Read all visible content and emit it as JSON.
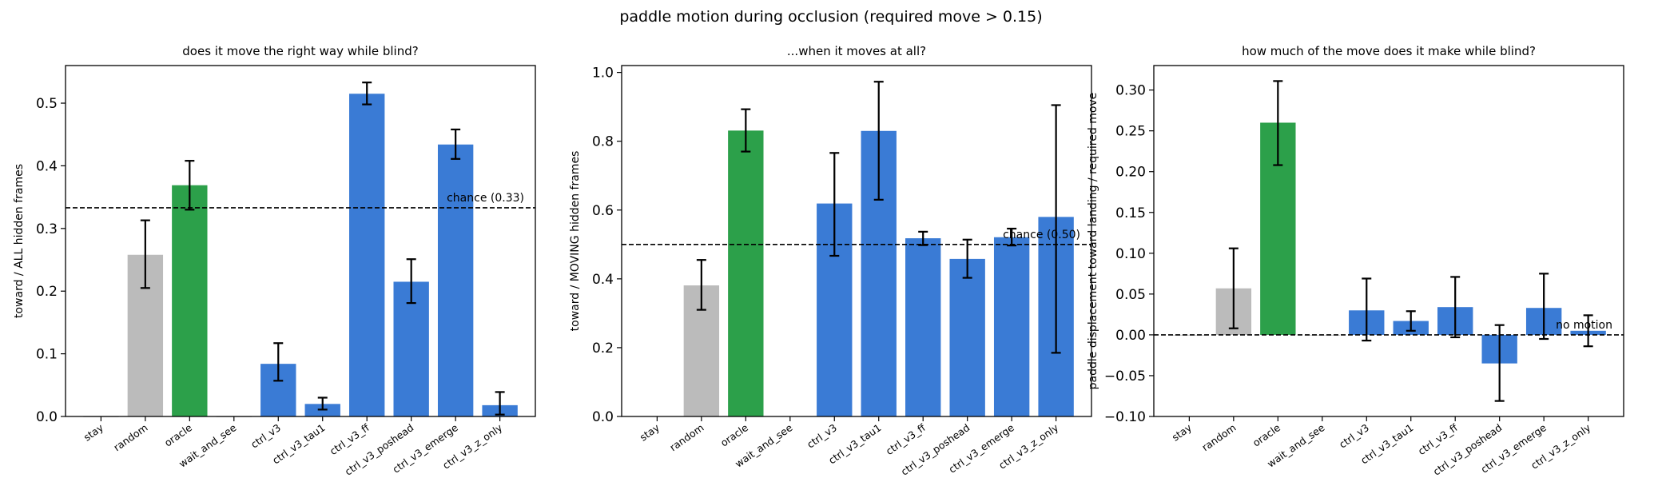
{
  "figure": {
    "suptitle": "paddle motion during occlusion (required move > 0.15)"
  },
  "colors": {
    "baseline": "#bbbbbb",
    "oracle": "#2ca04a",
    "model": "#3a7bd5",
    "errorbar": "#000000",
    "reference_line": "#000000"
  },
  "chart_data": [
    {
      "type": "bar",
      "title": "does it move the right way while blind?",
      "xlabel": "",
      "ylabel": "toward / ALL hidden frames",
      "ylim": [
        0,
        0.56
      ],
      "yticks": [
        0.0,
        0.1,
        0.2,
        0.3,
        0.4,
        0.5
      ],
      "ytick_labels": [
        "0.0",
        "0.1",
        "0.2",
        "0.3",
        "0.4",
        "0.5"
      ],
      "categories": [
        "stay",
        "random",
        "oracle",
        "wait_and_see",
        "ctrl_v3",
        "ctrl_v3_tau1",
        "ctrl_v3_ff",
        "ctrl_v3_poshead",
        "ctrl_v3_emerge",
        "ctrl_v3_z_only"
      ],
      "values": [
        0.0,
        0.258,
        0.369,
        0.0,
        0.084,
        0.02,
        0.515,
        0.215,
        0.434,
        0.018
      ],
      "err_low": [
        null,
        0.205,
        0.33,
        null,
        0.057,
        0.011,
        0.498,
        0.181,
        0.411,
        0.003
      ],
      "err_high": [
        null,
        0.313,
        0.408,
        null,
        0.117,
        0.03,
        0.533,
        0.251,
        0.458,
        0.039
      ],
      "bar_groups": [
        "baseline",
        "baseline",
        "oracle",
        "baseline",
        "model",
        "model",
        "model",
        "model",
        "model",
        "model"
      ],
      "reference_line": {
        "y": 0.333,
        "label": "chance (0.33)"
      },
      "grid": false
    },
    {
      "type": "bar",
      "title": "...when it moves at all?",
      "xlabel": "",
      "ylabel": "toward / MOVING hidden frames",
      "ylim": [
        0,
        1.02
      ],
      "yticks": [
        0.0,
        0.2,
        0.4,
        0.6,
        0.8,
        1.0
      ],
      "ytick_labels": [
        "0.0",
        "0.2",
        "0.4",
        "0.6",
        "0.8",
        "1.0"
      ],
      "categories": [
        "stay",
        "random",
        "oracle",
        "wait_and_see",
        "ctrl_v3",
        "ctrl_v3_tau1",
        "ctrl_v3_ff",
        "ctrl_v3_poshead",
        "ctrl_v3_emerge",
        "ctrl_v3_z_only"
      ],
      "values": [
        null,
        0.381,
        0.831,
        null,
        0.619,
        0.83,
        0.518,
        0.458,
        0.521,
        0.58
      ],
      "err_low": [
        null,
        0.31,
        0.77,
        null,
        0.467,
        0.63,
        0.498,
        0.403,
        0.497,
        0.185
      ],
      "err_high": [
        null,
        0.455,
        0.893,
        null,
        0.766,
        0.973,
        0.537,
        0.514,
        0.546,
        0.905
      ],
      "bar_groups": [
        "baseline",
        "baseline",
        "oracle",
        "baseline",
        "model",
        "model",
        "model",
        "model",
        "model",
        "model"
      ],
      "reference_line": {
        "y": 0.5,
        "label": "chance (0.50)"
      },
      "grid": false
    },
    {
      "type": "bar",
      "title": "how much of the move does it make while blind?",
      "xlabel": "",
      "ylabel": "paddle displacement toward landing / required move",
      "ylim": [
        -0.1,
        0.33
      ],
      "yticks": [
        -0.1,
        -0.05,
        0.0,
        0.05,
        0.1,
        0.15,
        0.2,
        0.25,
        0.3
      ],
      "ytick_labels": [
        "−0.10",
        "−0.05",
        "0.00",
        "0.05",
        "0.10",
        "0.15",
        "0.20",
        "0.25",
        "0.30"
      ],
      "categories": [
        "stay",
        "random",
        "oracle",
        "wait_and_see",
        "ctrl_v3",
        "ctrl_v3_tau1",
        "ctrl_v3_ff",
        "ctrl_v3_poshead",
        "ctrl_v3_emerge",
        "ctrl_v3_z_only"
      ],
      "values": [
        0.0,
        0.057,
        0.26,
        0.0,
        0.03,
        0.017,
        0.034,
        -0.035,
        0.033,
        0.005
      ],
      "err_low": [
        null,
        0.008,
        0.208,
        null,
        -0.007,
        0.005,
        -0.003,
        -0.081,
        -0.005,
        -0.014
      ],
      "err_high": [
        null,
        0.106,
        0.311,
        null,
        0.069,
        0.029,
        0.071,
        0.012,
        0.075,
        0.024
      ],
      "bar_groups": [
        "baseline",
        "baseline",
        "oracle",
        "baseline",
        "model",
        "model",
        "model",
        "model",
        "model",
        "model"
      ],
      "reference_line": {
        "y": 0.0,
        "label": "no motion"
      },
      "grid": false
    }
  ]
}
